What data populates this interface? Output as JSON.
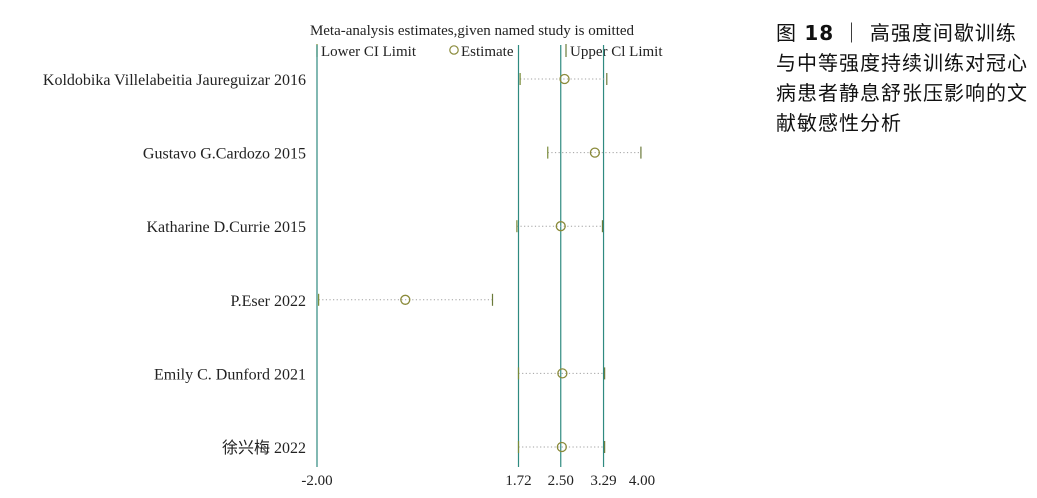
{
  "caption": {
    "prefix": "图 ",
    "number": "18",
    "separator": " ｜",
    "text": "高强度间歇训练与中等强度持续训练对冠心病患者静息舒张压影响的文献敏感性分析"
  },
  "chart_data": {
    "type": "sensitivity-forest",
    "title": "Meta-analysis estimates,given named study is omitted",
    "legend": [
      {
        "symbol": "|",
        "label": "Lower CI Limit"
      },
      {
        "symbol": "○",
        "label": "Estimate"
      },
      {
        "symbol": "|",
        "label": "Upper Cl Limit"
      }
    ],
    "legend_position": "top",
    "x_ticks": [
      -2.0,
      1.72,
      2.5,
      3.29,
      4.0
    ],
    "x_tick_labels": [
      "-2.00",
      "1.72",
      "2.50",
      "3.29",
      "4.00"
    ],
    "xlim": [
      -2.0,
      4.0
    ],
    "reference_lines": [
      -2.0,
      1.72,
      2.5,
      3.29
    ],
    "studies": [
      {
        "label": "Koldobika Villelabeitia Jaureguizar 2016",
        "lower": 1.75,
        "estimate": 2.57,
        "upper": 3.35
      },
      {
        "label": "Gustavo G.Cardozo 2015",
        "lower": 2.26,
        "estimate": 3.13,
        "upper": 3.98
      },
      {
        "label": "Katharine D.Currie 2015",
        "lower": 1.69,
        "estimate": 2.5,
        "upper": 3.27
      },
      {
        "label": "P.Eser 2022",
        "lower": -1.97,
        "estimate": -0.37,
        "upper": 1.24
      },
      {
        "label": "Emily C. Dunford 2021",
        "lower": 1.72,
        "estimate": 2.53,
        "upper": 3.31
      },
      {
        "label": "徐兴梅 2022",
        "lower": 1.72,
        "estimate": 2.52,
        "upper": 3.31
      }
    ],
    "colors": {
      "reference": "#2f8a80",
      "lower": "#7a8c3a",
      "estimate": "#8a8a3a",
      "upper": "#6b7a3a",
      "dots": "#a0a0a0"
    }
  }
}
